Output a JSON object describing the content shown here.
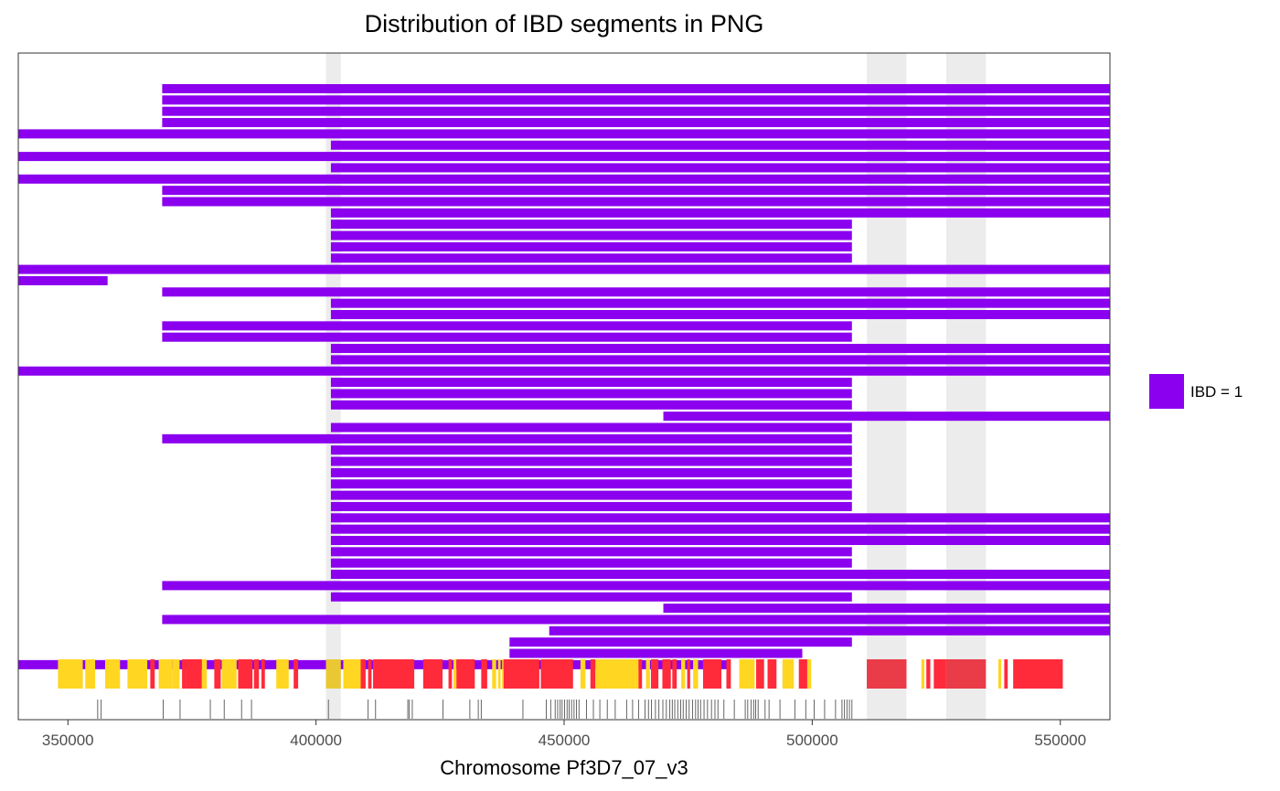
{
  "chart_data": {
    "type": "bar",
    "title": "Distribution of IBD segments in PNG",
    "xlabel": "Chromosome Pf3D7_07_v3",
    "ylabel": "",
    "xlim": [
      340000,
      560000
    ],
    "x_ticks": [
      350000,
      400000,
      450000,
      500000,
      550000
    ],
    "x_tick_labels": [
      "350000",
      "400000",
      "450000",
      "500000",
      "550000"
    ],
    "grid": false,
    "legend": {
      "position": "right",
      "entries": [
        {
          "label": "IBD = 1",
          "color": "#8B00EE"
        }
      ]
    },
    "colors": {
      "segment": "#8B00EE",
      "gene_core": "#FF2A3A",
      "gene_variable": "#FFD622",
      "highlight": "#D9D9D9",
      "marker": "#555555"
    },
    "segments": [
      [
        369000,
        560000
      ],
      [
        369000,
        560000
      ],
      [
        369000,
        560000
      ],
      [
        369000,
        560000
      ],
      [
        340000,
        560000
      ],
      [
        403000,
        560000
      ],
      [
        340000,
        560000
      ],
      [
        403000,
        560000
      ],
      [
        340000,
        560000
      ],
      [
        369000,
        560000
      ],
      [
        369000,
        560000
      ],
      [
        403000,
        560000
      ],
      [
        403000,
        508000
      ],
      [
        403000,
        508000
      ],
      [
        403000,
        508000
      ],
      [
        403000,
        508000
      ],
      [
        340000,
        560000
      ],
      [
        340000,
        358000
      ],
      [
        369000,
        560000
      ],
      [
        403000,
        560000
      ],
      [
        403000,
        560000
      ],
      [
        369000,
        508000
      ],
      [
        369000,
        508000
      ],
      [
        403000,
        560000
      ],
      [
        403000,
        560000
      ],
      [
        340000,
        560000
      ],
      [
        403000,
        508000
      ],
      [
        403000,
        508000
      ],
      [
        403000,
        508000
      ],
      [
        470000,
        560000
      ],
      [
        403000,
        508000
      ],
      [
        369000,
        508000
      ],
      [
        403000,
        508000
      ],
      [
        403000,
        508000
      ],
      [
        403000,
        508000
      ],
      [
        403000,
        508000
      ],
      [
        403000,
        508000
      ],
      [
        403000,
        508000
      ],
      [
        403000,
        560000
      ],
      [
        403000,
        560000
      ],
      [
        403000,
        560000
      ],
      [
        403000,
        508000
      ],
      [
        403000,
        508000
      ],
      [
        403000,
        560000
      ],
      [
        369000,
        560000
      ],
      [
        403000,
        508000
      ],
      [
        470000,
        560000
      ],
      [
        369000,
        560000
      ],
      [
        447000,
        560000
      ],
      [
        439000,
        508000
      ],
      [
        439000,
        498000
      ],
      [
        340000,
        483000
      ]
    ],
    "highlight_regions": [
      [
        402000,
        405000
      ],
      [
        511000,
        519000
      ],
      [
        527000,
        535000
      ]
    ],
    "gene_track": [
      [
        348000,
        353000,
        "v"
      ],
      [
        353500,
        355500,
        "v"
      ],
      [
        357500,
        360500,
        "v"
      ],
      [
        362000,
        366000,
        "v"
      ],
      [
        366600,
        367500,
        "c"
      ],
      [
        368300,
        371000,
        "v"
      ],
      [
        371000,
        372500,
        "v"
      ],
      [
        373000,
        373800,
        "c"
      ],
      [
        373800,
        377000,
        "c"
      ],
      [
        377000,
        378000,
        "v"
      ],
      [
        379500,
        380800,
        "c"
      ],
      [
        381000,
        384000,
        "v"
      ],
      [
        384300,
        387200,
        "c"
      ],
      [
        387500,
        388500,
        "c"
      ],
      [
        389000,
        389700,
        "c"
      ],
      [
        392000,
        394500,
        "v"
      ],
      [
        395500,
        396400,
        "c"
      ],
      [
        402000,
        405000,
        "v"
      ],
      [
        405500,
        409000,
        "v"
      ],
      [
        409000,
        410000,
        "c"
      ],
      [
        410500,
        411200,
        "c"
      ],
      [
        411500,
        419800,
        "c"
      ],
      [
        421600,
        425500,
        "c"
      ],
      [
        426700,
        427400,
        "c"
      ],
      [
        427700,
        428300,
        "v"
      ],
      [
        428300,
        432000,
        "c"
      ],
      [
        433300,
        434500,
        "c"
      ],
      [
        435500,
        436300,
        "v"
      ],
      [
        436700,
        437200,
        "v"
      ],
      [
        437500,
        437800,
        "v"
      ],
      [
        437800,
        445000,
        "c"
      ],
      [
        445300,
        451800,
        "c"
      ],
      [
        453300,
        454300,
        "v"
      ],
      [
        455300,
        456300,
        "c"
      ],
      [
        456300,
        465000,
        "v"
      ],
      [
        465000,
        465700,
        "c"
      ],
      [
        466500,
        467300,
        "v"
      ],
      [
        467500,
        469000,
        "c"
      ],
      [
        469800,
        471500,
        "c"
      ],
      [
        471800,
        472700,
        "c"
      ],
      [
        473600,
        474400,
        "v"
      ],
      [
        474800,
        475400,
        "c"
      ],
      [
        476000,
        477000,
        "v"
      ],
      [
        478000,
        481700,
        "c"
      ],
      [
        482700,
        483600,
        "c"
      ],
      [
        485300,
        488400,
        "v"
      ],
      [
        488700,
        490300,
        "c"
      ],
      [
        491000,
        492800,
        "c"
      ],
      [
        494000,
        496300,
        "v"
      ],
      [
        497300,
        499000,
        "c"
      ],
      [
        499000,
        499800,
        "v"
      ],
      [
        511000,
        519000,
        "c"
      ],
      [
        522000,
        522600,
        "v"
      ],
      [
        523000,
        523800,
        "c"
      ],
      [
        524500,
        527000,
        "c"
      ],
      [
        527000,
        535000,
        "c"
      ],
      [
        537500,
        538100,
        "v"
      ],
      [
        538700,
        539400,
        "c"
      ],
      [
        540500,
        550500,
        "c"
      ]
    ],
    "variant_markers": [
      356000,
      356700,
      369200,
      372600,
      378700,
      381500,
      385000,
      387000,
      402500,
      410500,
      412000,
      418500,
      418800,
      419400,
      425600,
      431000,
      432700,
      433300,
      441700,
      446400,
      447300,
      448200,
      448700,
      449200,
      449600,
      450100,
      450600,
      451000,
      451500,
      452000,
      452500,
      453000,
      454500,
      455900,
      457200,
      458700,
      460300,
      462600,
      463800,
      465000,
      466300,
      467000,
      467600,
      468400,
      469100,
      469900,
      470600,
      471300,
      471800,
      472300,
      472900,
      473500,
      474000,
      474600,
      475200,
      475900,
      476500,
      477000,
      477500,
      478200,
      478900,
      479700,
      480400,
      481000,
      482200,
      484300,
      486500,
      487000,
      487700,
      488200,
      488600,
      489100,
      490500,
      491300,
      493500,
      496500,
      498700,
      500400,
      502500,
      504700,
      506000,
      506500,
      507000,
      507500,
      508000
    ]
  }
}
